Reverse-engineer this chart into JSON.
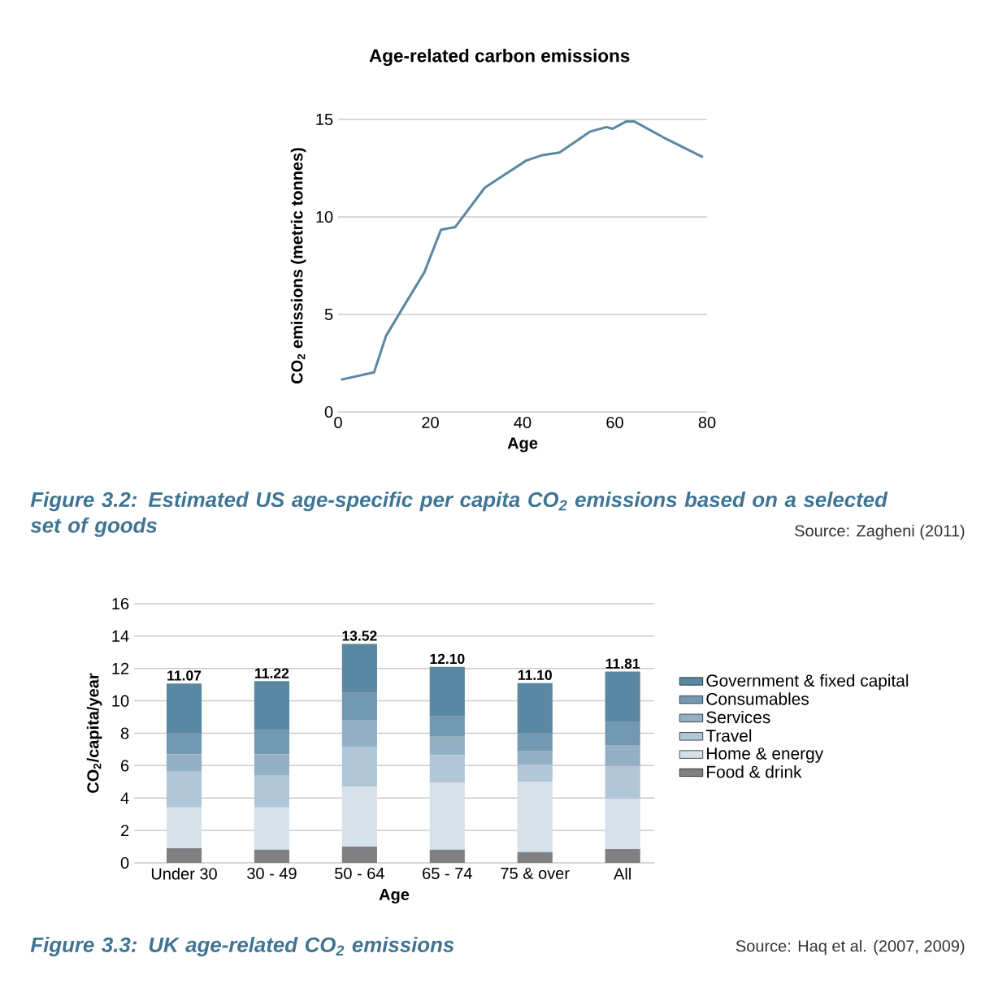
{
  "chart_data": [
    {
      "type": "line",
      "title": "Age-related carbon emissions",
      "xlabel": "Age",
      "ylabel": "CO$_{2}$ emissions (metric tonnes)",
      "xlim": [
        0,
        80
      ],
      "ylim": [
        0,
        15
      ],
      "xticks": [
        0,
        20,
        40,
        60,
        80
      ],
      "yticks": [
        0,
        5,
        10,
        15
      ],
      "grid": "y",
      "series": [
        {
          "color": "#5b87a2",
          "x": [
            0.6,
            7.8,
            10.4,
            14.2,
            18.7,
            22.3,
            25.4,
            31.8,
            36.5,
            40.8,
            44.3,
            48.0,
            54.7,
            58.2,
            59.5,
            62.5,
            64.2,
            70.6,
            79.1
          ],
          "values": [
            1.65,
            2.03,
            3.9,
            5.4,
            7.16,
            9.34,
            9.48,
            11.5,
            12.23,
            12.89,
            13.17,
            13.3,
            14.38,
            14.61,
            14.52,
            14.9,
            14.9,
            14.07,
            13.07
          ]
        }
      ],
      "annotations": [
        "Figure 3.2:  Estimated US age-specific per capita CO$_{2}$ emissions based on a selected set of goods",
        "Source: Zagheni (2011)"
      ]
    },
    {
      "type": "bar",
      "stacked": true,
      "xlabel": "Age",
      "ylabel": "CO$_{2}$/capita/year",
      "categories": [
        "Under 30",
        "30 - 49",
        "50 - 64",
        "65 - 74",
        "75 & over",
        "All"
      ],
      "ylim": [
        0,
        16
      ],
      "yticks": [
        0,
        2,
        4,
        6,
        8,
        10,
        12,
        14,
        16
      ],
      "grid": "y",
      "legend": "right",
      "series": [
        {
          "name": "Food & drink",
          "color": "#808083",
          "values": [
            0.9,
            0.81,
            1.0,
            0.81,
            0.67,
            0.85
          ]
        },
        {
          "name": "Home & energy",
          "color": "#d6e1ea",
          "values": [
            2.52,
            2.61,
            3.69,
            4.15,
            4.35,
            3.11
          ]
        },
        {
          "name": "Travel",
          "color": "#b1c7d7",
          "values": [
            2.21,
            1.96,
            2.44,
            1.69,
            1.02,
            2.02
          ]
        },
        {
          "name": "Services",
          "color": "#93b0c4",
          "values": [
            1.06,
            1.31,
            1.7,
            1.14,
            0.84,
            1.29
          ]
        },
        {
          "name": "Consumables",
          "color": "#7399b2",
          "values": [
            1.33,
            1.5,
            1.67,
            1.25,
            1.14,
            1.46
          ]
        },
        {
          "name": "Government & fixed capital",
          "color": "#5a87a2",
          "values": [
            3.05,
            3.03,
            3.02,
            3.06,
            3.08,
            3.08
          ]
        }
      ],
      "totals": [
        "11.07",
        "11.22",
        "13.52",
        "12.10",
        "11.10",
        "11.81"
      ],
      "annotations": [
        "Figure 3.3:  UK age-related CO$_{2}$ emissions",
        "Source: Haq et al. (2007, 2009)"
      ]
    }
  ]
}
